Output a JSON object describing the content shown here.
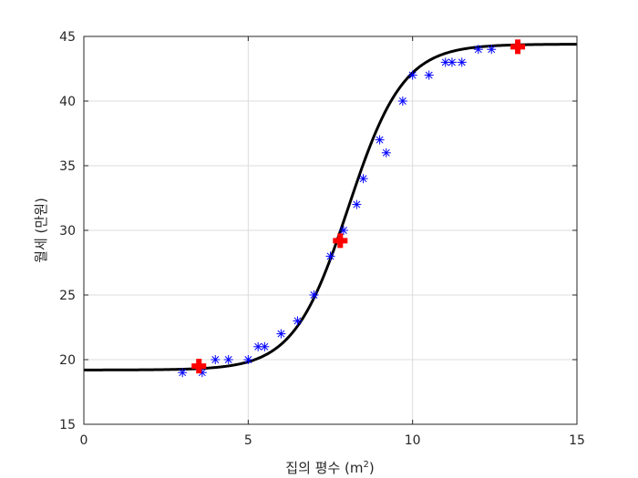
{
  "chart_data": {
    "type": "scatter",
    "title": "",
    "xlabel": "집의 평수 (m",
    "xlabel_sup": "2",
    "xlabel_suffix": ")",
    "ylabel": "월세 (만원)",
    "xlim": [
      0,
      15
    ],
    "ylim": [
      15,
      45
    ],
    "xticks": [
      0,
      5,
      10,
      15
    ],
    "yticks": [
      15,
      20,
      25,
      30,
      35,
      40,
      45
    ],
    "grid": true,
    "legend": "none",
    "series": [
      {
        "kind": "scatter",
        "marker": "asterisk",
        "color": "#0000ff",
        "x": [
          3.0,
          3.6,
          4.0,
          4.4,
          5.0,
          5.3,
          5.5,
          6.0,
          6.5,
          7.0,
          7.5,
          7.9,
          8.3,
          8.5,
          9.0,
          9.2,
          9.7,
          10.0,
          10.5,
          11.0,
          11.2,
          11.5,
          12.0,
          12.4
        ],
        "y": [
          19,
          19,
          20,
          20,
          20,
          21,
          21,
          22,
          23,
          25,
          28,
          30,
          32,
          34,
          37,
          36,
          40,
          42,
          42,
          43,
          43,
          43,
          44,
          44
        ]
      },
      {
        "kind": "line",
        "color": "#000000",
        "model": "logistic",
        "params": {
          "lower": 19.2,
          "upper": 44.4,
          "midpoint": 8.05,
          "rate": 1.2
        }
      },
      {
        "kind": "scatter",
        "marker": "plus-bold",
        "color": "#ff0000",
        "x": [
          3.5,
          7.8,
          13.2
        ],
        "y": [
          19.5,
          29.2,
          44.2
        ]
      }
    ]
  }
}
